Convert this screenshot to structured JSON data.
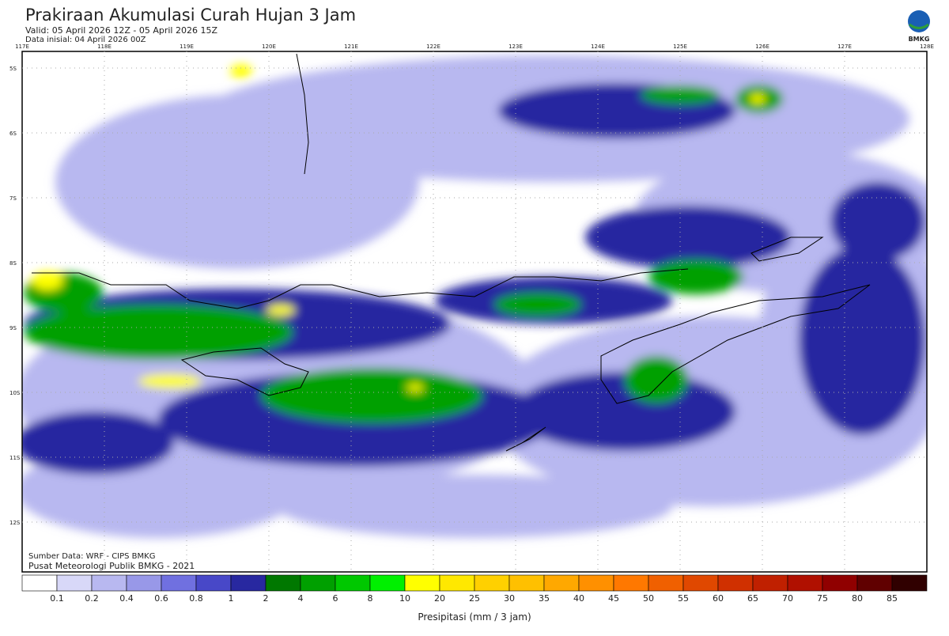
{
  "header": {
    "title": "Prakiraan Akumulasi Curah Hujan 3 Jam",
    "valid": "Valid: 05 April 2026 12Z - 05 April 2026 15Z",
    "initial": "Data inisial: 04 April 2026 00Z",
    "logo": "BMKG"
  },
  "map": {
    "lon_labels": [
      "117E",
      "118E",
      "119E",
      "120E",
      "121E",
      "122E",
      "123E",
      "124E",
      "125E",
      "126E",
      "127E",
      "128E"
    ],
    "lat_labels": [
      "5S",
      "6S",
      "7S",
      "8S",
      "9S",
      "10S",
      "11S",
      "12S"
    ],
    "source": "Sumber Data: WRF - CIPS BMKG",
    "credit": "Pusat Meteorologi Publik BMKG - 2021"
  },
  "legend": {
    "ticks": [
      0.1,
      0.2,
      0.4,
      0.6,
      0.8,
      1,
      2,
      4,
      6,
      8,
      10,
      20,
      25,
      30,
      35,
      40,
      45,
      50,
      55,
      60,
      65,
      70,
      75,
      80,
      85
    ],
    "colors": [
      "#ffffff",
      "#d8d8f8",
      "#b8b8f0",
      "#9898e8",
      "#7070e0",
      "#4848c8",
      "#2828a0",
      "#007800",
      "#00a000",
      "#00c800",
      "#00f000",
      "#ffff00",
      "#ffe800",
      "#ffd000",
      "#ffc000",
      "#ffa800",
      "#ff9000",
      "#ff7800",
      "#f06000",
      "#e04800",
      "#d03000",
      "#c02000",
      "#b01000",
      "#900000",
      "#600000",
      "#300000"
    ],
    "label": "Presipitasi (mm / 3 jam)"
  }
}
